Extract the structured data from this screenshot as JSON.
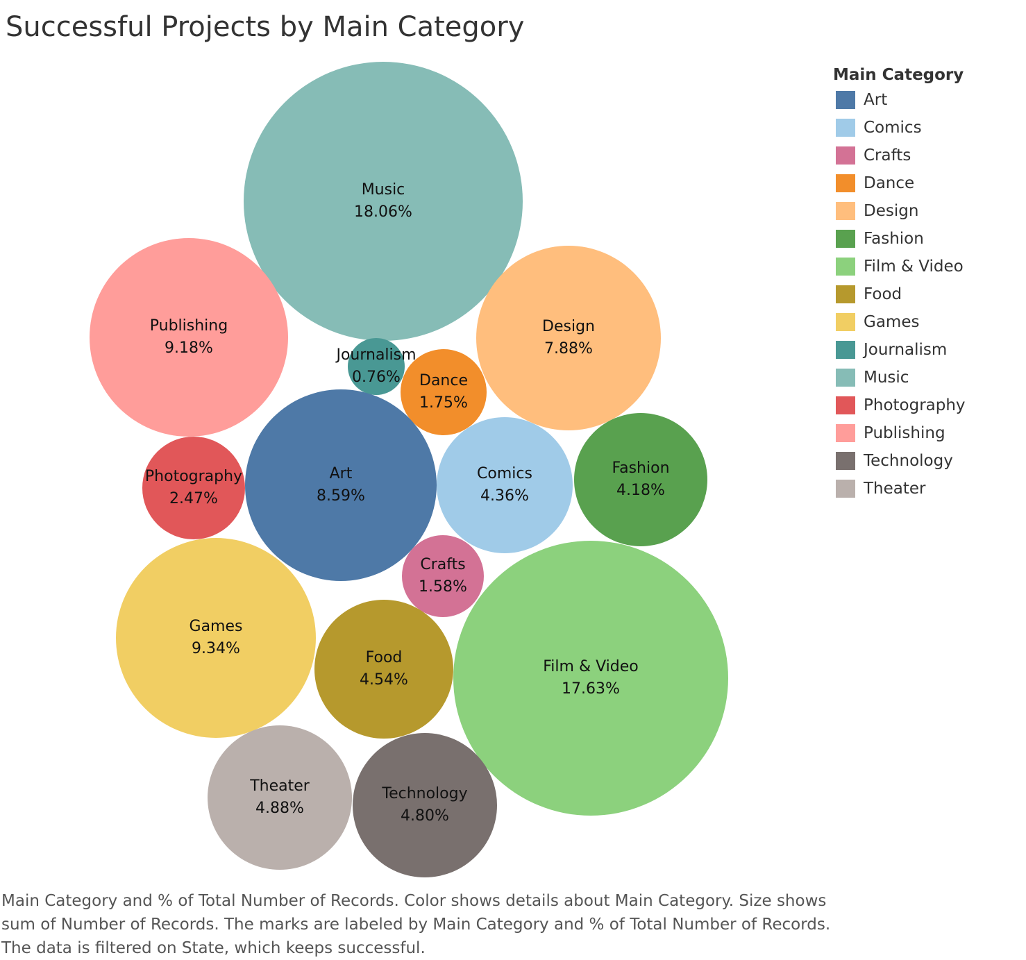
{
  "title": "Successful Projects by Main Category",
  "legend": {
    "title": "Main Category",
    "items": [
      {
        "label": "Art",
        "color": "#4e79a7"
      },
      {
        "label": "Comics",
        "color": "#a0cbe8"
      },
      {
        "label": "Crafts",
        "color": "#d37295"
      },
      {
        "label": "Dance",
        "color": "#f28e2b"
      },
      {
        "label": "Design",
        "color": "#ffbe7d"
      },
      {
        "label": "Fashion",
        "color": "#59a14f"
      },
      {
        "label": "Film & Video",
        "color": "#8cd17d"
      },
      {
        "label": "Food",
        "color": "#b6992d"
      },
      {
        "label": "Games",
        "color": "#f1ce63"
      },
      {
        "label": "Journalism",
        "color": "#499894"
      },
      {
        "label": "Music",
        "color": "#86bcb6"
      },
      {
        "label": "Photography",
        "color": "#e15759"
      },
      {
        "label": "Publishing",
        "color": "#ff9d9a"
      },
      {
        "label": "Technology",
        "color": "#79706e"
      },
      {
        "label": "Theater",
        "color": "#bab0ac"
      }
    ]
  },
  "chart_data": {
    "type": "bubble",
    "title": "Successful Projects by Main Category",
    "measure": "% of Total Number of Records",
    "points": [
      {
        "category": "Music",
        "label": "18.06%",
        "value": 18.06
      },
      {
        "category": "Publishing",
        "label": "9.18%",
        "value": 9.18
      },
      {
        "category": "Design",
        "label": "7.88%",
        "value": 7.88
      },
      {
        "category": "Journalism",
        "label": "0.76%",
        "value": 0.76
      },
      {
        "category": "Dance",
        "label": "1.75%",
        "value": 1.75
      },
      {
        "category": "Photography",
        "label": "2.47%",
        "value": 2.47
      },
      {
        "category": "Art",
        "label": "8.59%",
        "value": 8.59
      },
      {
        "category": "Comics",
        "label": "4.36%",
        "value": 4.36
      },
      {
        "category": "Fashion",
        "label": "4.18%",
        "value": 4.18
      },
      {
        "category": "Crafts",
        "label": "1.58%",
        "value": 1.58
      },
      {
        "category": "Games",
        "label": "9.34%",
        "value": 9.34
      },
      {
        "category": "Food",
        "label": "4.54%",
        "value": 4.54
      },
      {
        "category": "Film & Video",
        "label": "17.63%",
        "value": 17.63
      },
      {
        "category": "Theater",
        "label": "4.88%",
        "value": 4.88
      },
      {
        "category": "Technology",
        "label": "4.80%",
        "value": 4.8
      }
    ]
  },
  "caption": [
    "Main Category and % of Total Number of Records.  Color shows details about Main Category.  Size shows",
    "sum of Number of Records.  The marks are labeled by Main Category and % of Total Number of Records.",
    "The data is filtered on State, which keeps successful."
  ]
}
